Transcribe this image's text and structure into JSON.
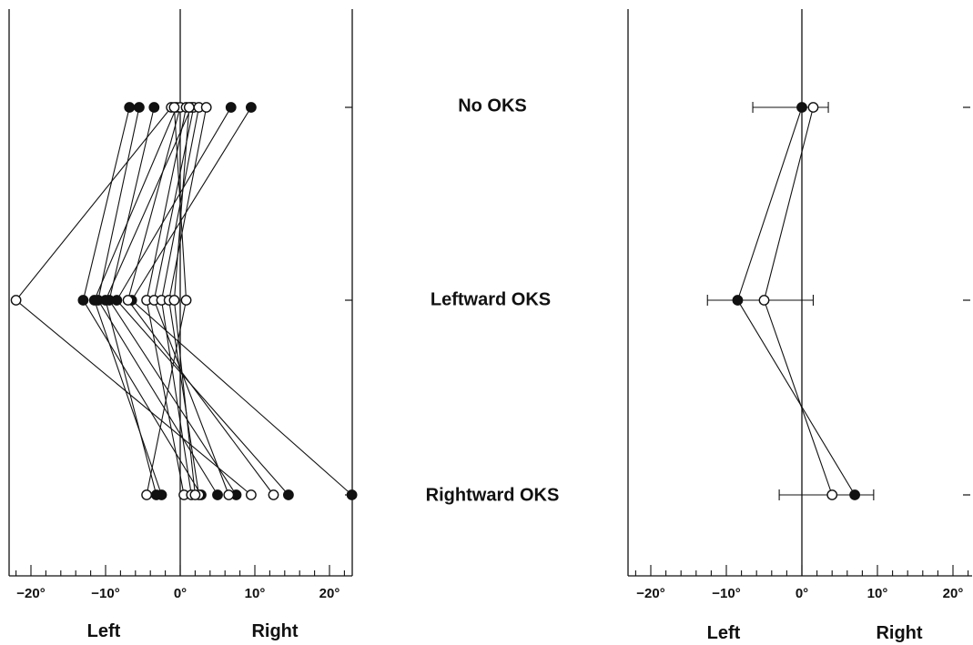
{
  "chart_data": [
    {
      "type": "scatter",
      "panel": "individual",
      "xlim": [
        -23,
        23
      ],
      "ticks": [
        -20,
        -10,
        0,
        10,
        20
      ],
      "tick_labels": [
        "−20°",
        "−10°",
        "0°",
        "10°",
        "20°"
      ],
      "x_dir_labels": {
        "left": "Left",
        "right": "Right"
      },
      "conditions": [
        "No OKS",
        "Leftward OKS",
        "Rightward OKS"
      ],
      "marker_legend": {
        "filled": "filled circle",
        "open": "open circle"
      },
      "subjects": [
        {
          "marker": "filled",
          "values": [
            -6.8,
            -13,
            2.8
          ]
        },
        {
          "marker": "filled",
          "values": [
            -5.5,
            -11,
            5.0
          ]
        },
        {
          "marker": "filled",
          "values": [
            -3.5,
            -9.5,
            7.5
          ]
        },
        {
          "marker": "filled",
          "values": [
            6.8,
            -8.5,
            14.5
          ]
        },
        {
          "marker": "filled",
          "values": [
            9.5,
            -6.5,
            23.0
          ]
        },
        {
          "marker": "filled",
          "values": [
            -0.5,
            -11.5,
            -2.5
          ]
        },
        {
          "marker": "filled",
          "values": [
            1.5,
            -10.0,
            -3.2
          ]
        },
        {
          "marker": "open",
          "values": [
            -1.2,
            -22.0,
            9.5
          ]
        },
        {
          "marker": "open",
          "values": [
            0.0,
            -7.0,
            12.5
          ]
        },
        {
          "marker": "open",
          "values": [
            0.8,
            -4.5,
            0.5
          ]
        },
        {
          "marker": "open",
          "values": [
            1.8,
            -3.5,
            6.5
          ]
        },
        {
          "marker": "open",
          "values": [
            2.5,
            -2.5,
            1.5
          ]
        },
        {
          "marker": "open",
          "values": [
            3.5,
            -1.5,
            2.5
          ]
        },
        {
          "marker": "open",
          "values": [
            -0.8,
            0.8,
            -4.5
          ]
        },
        {
          "marker": "open",
          "values": [
            1.2,
            -0.8,
            2.0
          ]
        }
      ]
    },
    {
      "type": "scatter",
      "panel": "mean",
      "xlim": [
        -23,
        23
      ],
      "ticks": [
        -20,
        -10,
        0,
        10,
        20
      ],
      "tick_labels": [
        "−20°",
        "−10°",
        "0°",
        "10°",
        "20°"
      ],
      "x_dir_labels": {
        "left": "Left",
        "right": "Right"
      },
      "conditions": [
        "No OKS",
        "Leftward OKS",
        "Rightward OKS"
      ],
      "series": [
        {
          "marker": "filled",
          "values": [
            0,
            -8.5,
            7
          ],
          "error_low": [
            -6.5,
            -12.5,
            -3.0
          ],
          "error_high": [
            3.5,
            1.5,
            9.5
          ]
        },
        {
          "marker": "open",
          "values": [
            1.5,
            -5.0,
            4
          ],
          "error_low": null,
          "error_high": null
        }
      ]
    }
  ]
}
